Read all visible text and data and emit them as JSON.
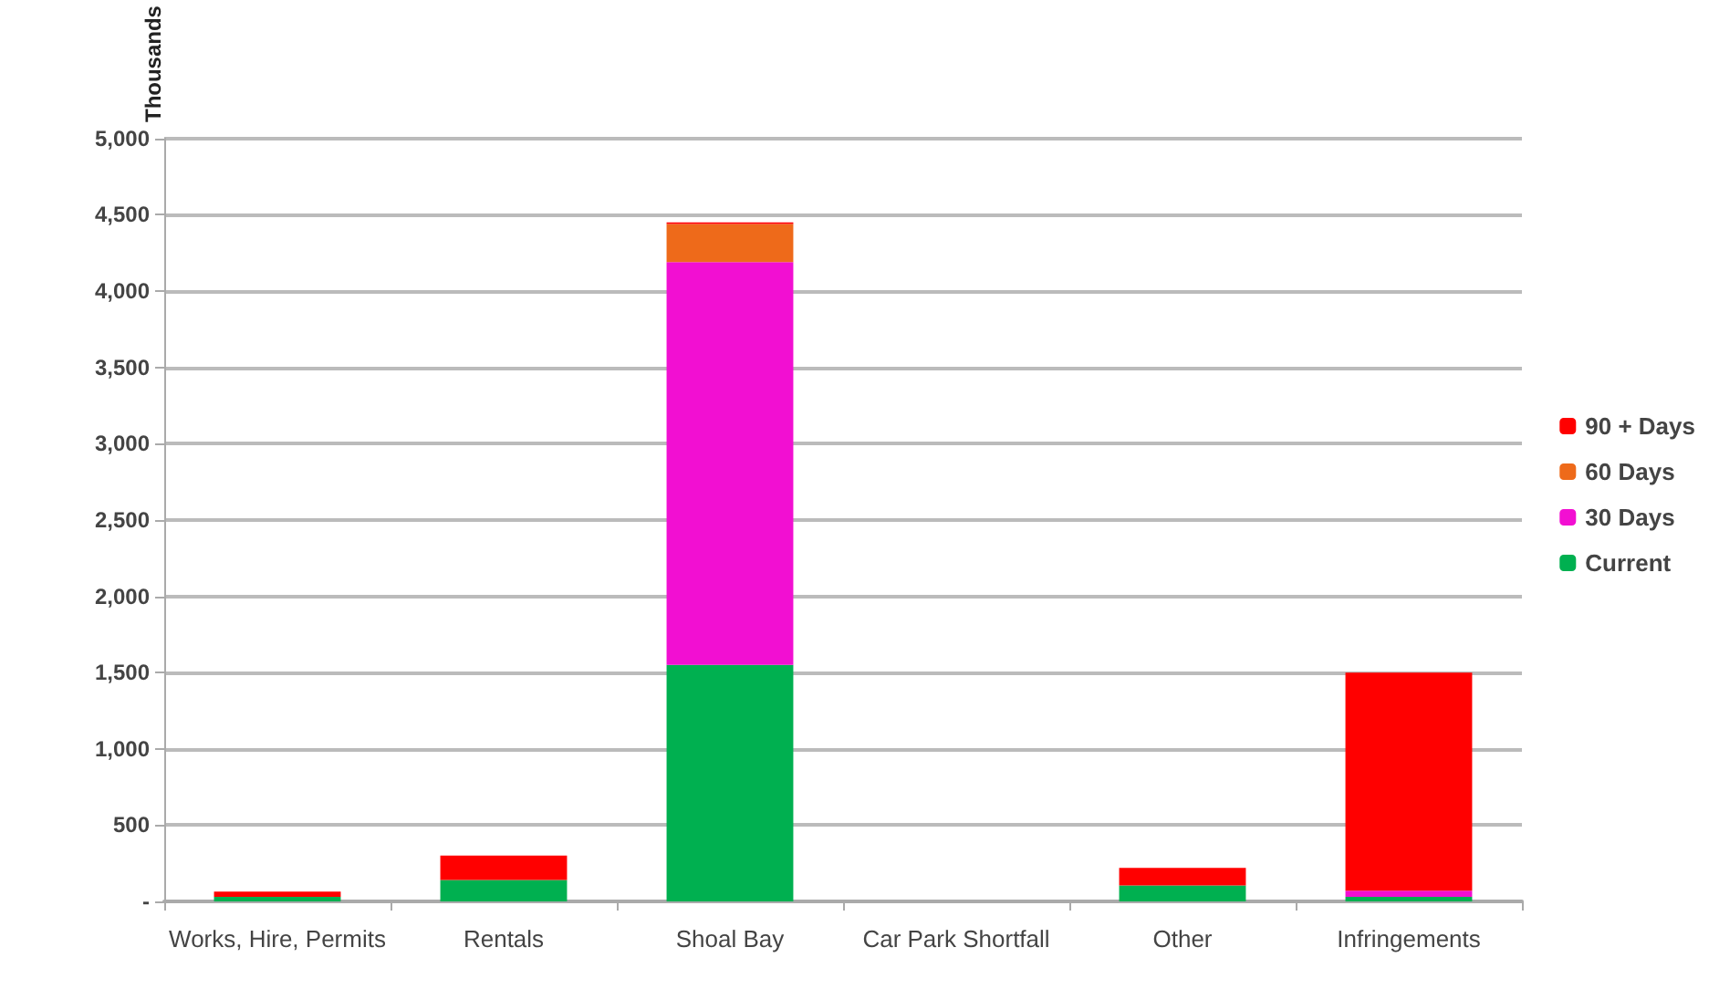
{
  "chart_data": {
    "type": "bar",
    "stacked": true,
    "ylabel": "Thousands",
    "categories": [
      "Works, Hire, Permits",
      "Rentals",
      "Shoal Bay",
      "Car Park Shortfall",
      "Other",
      "Infringements"
    ],
    "series": [
      {
        "name": "Current",
        "color": "#00b050",
        "values": [
          30,
          140,
          1550,
          0,
          105,
          30
        ]
      },
      {
        "name": "30 Days",
        "color": "#f20fd2",
        "values": [
          0,
          0,
          2640,
          0,
          0,
          40
        ]
      },
      {
        "name": "60 Days",
        "color": "#ee6a1a",
        "values": [
          0,
          0,
          250,
          0,
          0,
          0
        ]
      },
      {
        "name": "90 + Days",
        "color": "#ff0000",
        "values": [
          35,
          160,
          10,
          0,
          115,
          1430
        ]
      }
    ],
    "ylim": [
      0,
      5000
    ],
    "yticks": [
      {
        "value": 0,
        "label": "-"
      },
      500,
      {
        "value": 1000,
        "label": "1,000"
      },
      {
        "value": 1500,
        "label": "1,500"
      },
      {
        "value": 2000,
        "label": "2,000"
      },
      {
        "value": 2500,
        "label": "2,500"
      },
      {
        "value": 3000,
        "label": "3,000"
      },
      {
        "value": 3500,
        "label": "3,500"
      },
      {
        "value": 4000,
        "label": "4,000"
      },
      {
        "value": 4500,
        "label": "4,500"
      },
      {
        "value": 5000,
        "label": "5,000"
      }
    ],
    "grid": "y",
    "legend": "right"
  }
}
